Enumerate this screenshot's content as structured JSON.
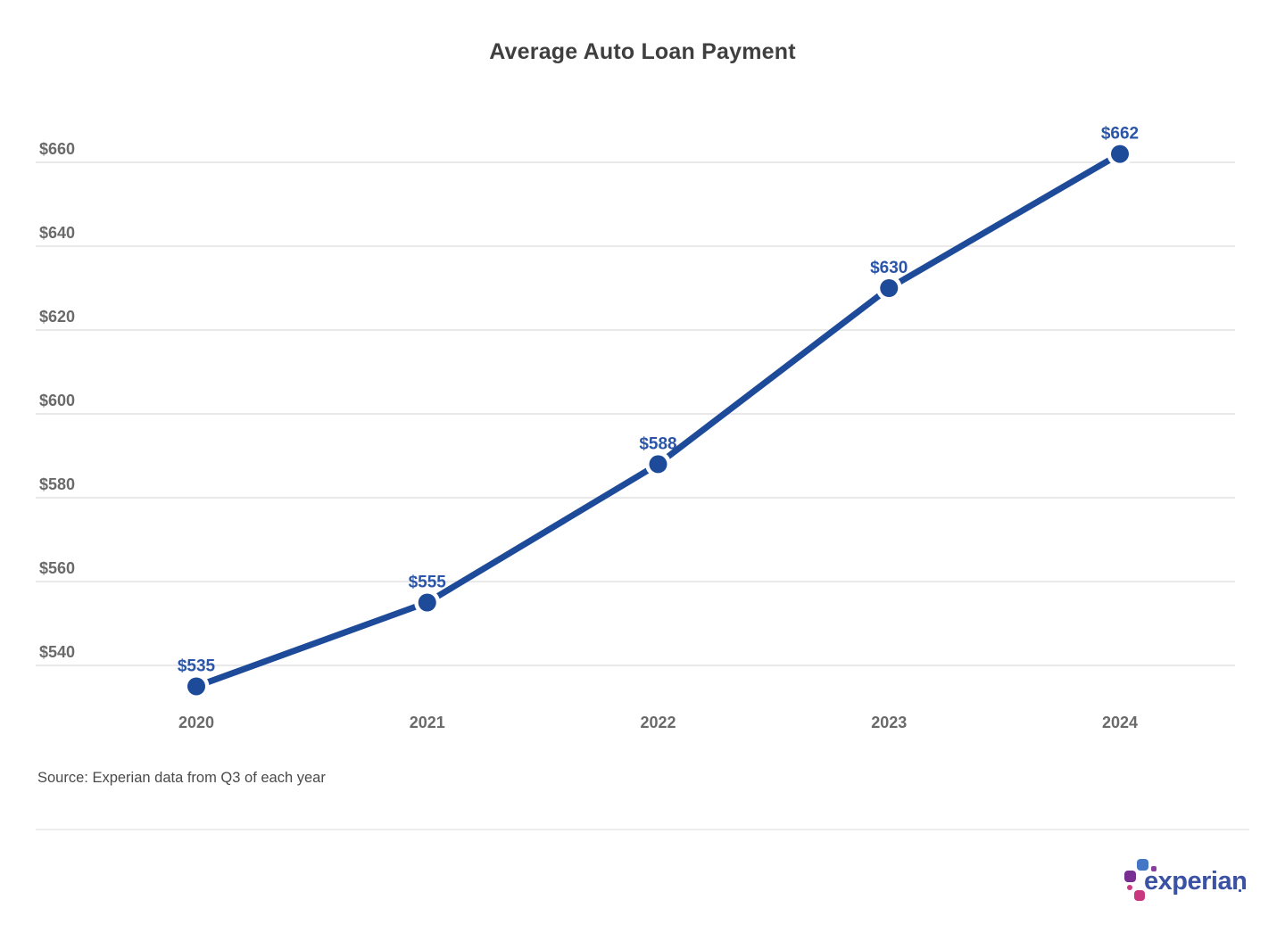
{
  "page": {
    "background": "#ffffff"
  },
  "chart_data": {
    "type": "line",
    "title": "Average Auto Loan Payment",
    "categories": [
      "2020",
      "2021",
      "2022",
      "2023",
      "2024"
    ],
    "values": [
      535,
      555,
      588,
      630,
      662
    ],
    "point_labels": [
      "$535",
      "$555",
      "$588",
      "$630",
      "$662"
    ],
    "y_axis": {
      "tick_values": [
        540,
        560,
        580,
        600,
        620,
        640,
        660
      ],
      "tick_labels": [
        "$540",
        "$560",
        "$580",
        "$600",
        "$620",
        "$640",
        "$660"
      ],
      "min": 540,
      "max": 660,
      "grid": true
    },
    "x_axis": {
      "label": "",
      "tick_labels": [
        "2020",
        "2021",
        "2022",
        "2023",
        "2024"
      ]
    },
    "legend": "none",
    "colors": {
      "line": "#1d4b99",
      "marker": "#1d4b99",
      "marker_halo": "#ffffff",
      "point_label": "#2a55a8",
      "axis_label": "#6a6a6a",
      "gridline": "#e9e9e9"
    }
  },
  "source_note": "Source: Experian data from Q3 of each year",
  "logo": {
    "text": "experian",
    "text_color": "#3b51a3",
    "mark_colors": {
      "blue_square": "#4377c6",
      "purple_dot": "#8a3f9e",
      "purple_square": "#772f92",
      "magenta_dot": "#cb3a82",
      "magenta_square": "#c9377f"
    }
  }
}
